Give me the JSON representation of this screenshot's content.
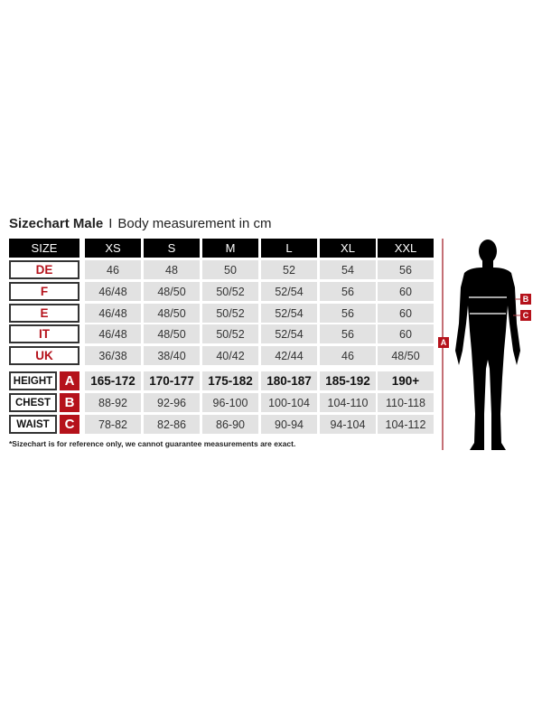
{
  "title": {
    "bold": "Sizechart Male",
    "separator": "I",
    "subtitle": "Body measurement in cm"
  },
  "colors": {
    "accent": "#b5121b",
    "header_bg": "#000000",
    "cell_bg": "#e2e2e2"
  },
  "table": {
    "size_label": "SIZE",
    "sizes": [
      "XS",
      "S",
      "M",
      "L",
      "XL",
      "XXL"
    ],
    "conversion_rows": [
      {
        "label": "DE",
        "values": [
          "46",
          "48",
          "50",
          "52",
          "54",
          "56"
        ]
      },
      {
        "label": "F",
        "values": [
          "46/48",
          "48/50",
          "50/52",
          "52/54",
          "56",
          "60"
        ]
      },
      {
        "label": "E",
        "values": [
          "46/48",
          "48/50",
          "50/52",
          "52/54",
          "56",
          "60"
        ]
      },
      {
        "label": "IT",
        "values": [
          "46/48",
          "48/50",
          "50/52",
          "52/54",
          "56",
          "60"
        ]
      },
      {
        "label": "UK",
        "values": [
          "36/38",
          "38/40",
          "40/42",
          "42/44",
          "46",
          "48/50"
        ]
      }
    ],
    "measurement_rows": [
      {
        "label": "HEIGHT",
        "badge": "A",
        "values": [
          "165-172",
          "170-177",
          "175-182",
          "180-187",
          "185-192",
          "190+"
        ]
      },
      {
        "label": "CHEST",
        "badge": "B",
        "values": [
          "88-92",
          "92-96",
          "96-100",
          "100-104",
          "104-110",
          "110-118"
        ]
      },
      {
        "label": "WAIST",
        "badge": "C",
        "values": [
          "78-82",
          "82-86",
          "86-90",
          "90-94",
          "94-104",
          "104-112"
        ]
      }
    ]
  },
  "footnote": "*Sizechart is for reference only, we cannot guarantee measurements are exact.",
  "figure": {
    "height_marker": "A",
    "chest_marker": "B",
    "waist_marker": "C"
  }
}
